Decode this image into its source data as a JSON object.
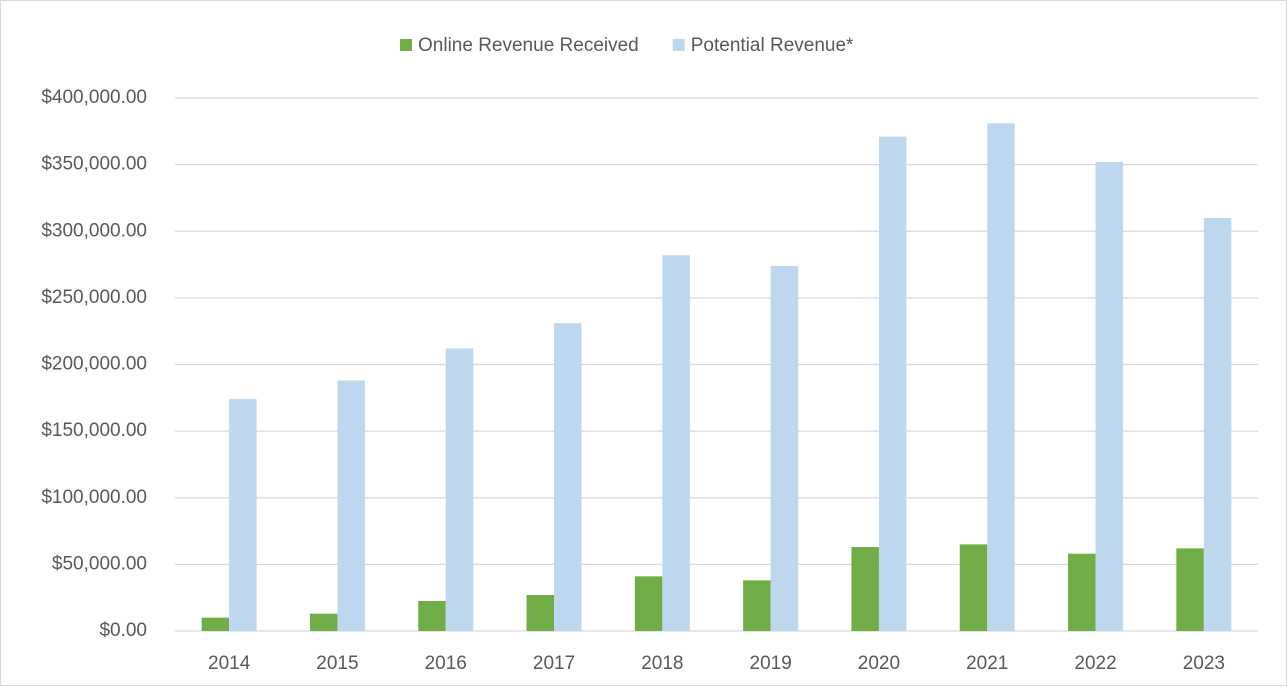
{
  "chart_data": {
    "type": "bar",
    "categories": [
      "2014",
      "2015",
      "2016",
      "2017",
      "2018",
      "2019",
      "2020",
      "2021",
      "2022",
      "2023"
    ],
    "series": [
      {
        "name": "Online Revenue Received",
        "color": "#70ad47",
        "values": [
          10000,
          13000,
          22500,
          27000,
          41000,
          38000,
          63000,
          65000,
          58000,
          62000
        ]
      },
      {
        "name": "Potential Revenue*",
        "color": "#bdd7ee",
        "values": [
          174000,
          188000,
          212000,
          231000,
          282000,
          274000,
          371000,
          381000,
          352000,
          310000
        ]
      }
    ],
    "ylim": [
      0,
      400000
    ],
    "yticks": [
      {
        "value": 0,
        "label": "$0.00"
      },
      {
        "value": 50000,
        "label": "$50,000.00"
      },
      {
        "value": 100000,
        "label": "$100,000.00"
      },
      {
        "value": 150000,
        "label": "$150,000.00"
      },
      {
        "value": 200000,
        "label": "$200,000.00"
      },
      {
        "value": 250000,
        "label": "$250,000.00"
      },
      {
        "value": 300000,
        "label": "$300,000.00"
      },
      {
        "value": 350000,
        "label": "$350,000.00"
      },
      {
        "value": 400000,
        "label": "$400,000.00"
      }
    ],
    "grid": true,
    "legend": "top"
  }
}
